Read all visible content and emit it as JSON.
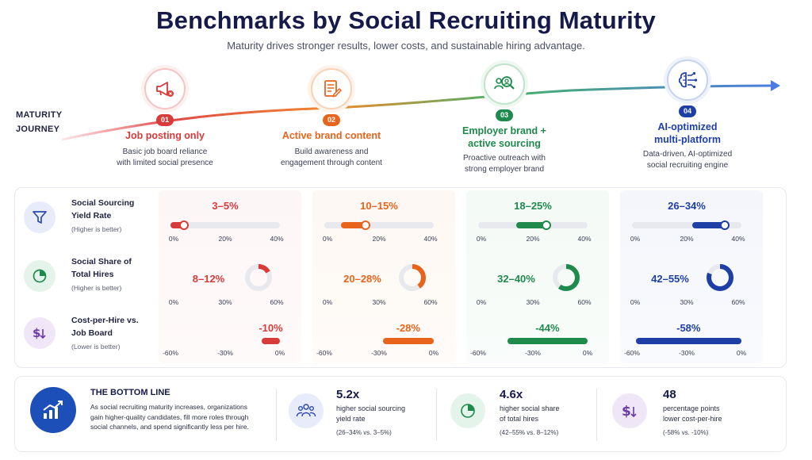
{
  "title": "Benchmarks by Social Recruiting Maturity",
  "subtitle": "Maturity drives stronger results, lower costs, and sustainable hiring advantage.",
  "journey": {
    "label_line1": "MATURITY",
    "label_line2": "JOURNEY"
  },
  "stages": [
    {
      "num": "01",
      "name_line1": "Job posting only",
      "name_line2": "",
      "desc_line1": "Basic job board reliance",
      "desc_line2": "with limited social presence",
      "icon": "megaphone-icon",
      "color": "#d93a3a"
    },
    {
      "num": "02",
      "name_line1": "Active brand content",
      "name_line2": "",
      "desc_line1": "Build awareness and",
      "desc_line2": "engagement through content",
      "icon": "document-edit-icon",
      "color": "#e8641c"
    },
    {
      "num": "03",
      "name_line1": "Employer brand +",
      "name_line2": "active sourcing",
      "desc_line1": "Proactive outreach with",
      "desc_line2": "strong employer brand",
      "icon": "people-search-icon",
      "color": "#1e8a4c"
    },
    {
      "num": "04",
      "name_line1": "AI-optimized",
      "name_line2": "multi-platform",
      "desc_line1": "Data-driven, AI-optimized",
      "desc_line2": "social recruiting engine",
      "icon": "ai-brain-icon",
      "color": "#1d3fa6"
    }
  ],
  "metrics": [
    {
      "name_line1": "Social Sourcing",
      "name_line2": "Yield Rate",
      "note": "(Higher is better)",
      "icon": "funnel-icon",
      "icon_color": "#2b49b0",
      "icon_bg": "#e7ebfa",
      "ticks": [
        "0%",
        "20%",
        "40%"
      ],
      "values": [
        "3–5%",
        "10–15%",
        "18–25%",
        "26–34%"
      ],
      "levels": [
        [
          3,
          5
        ],
        [
          10,
          15
        ],
        [
          18,
          25
        ],
        [
          26,
          34
        ]
      ],
      "scale": [
        0,
        40
      ]
    },
    {
      "name_line1": "Social Share of",
      "name_line2": "Total Hires",
      "note": "(Higher is better)",
      "icon": "pie-chart-icon",
      "icon_color": "#1e8a4c",
      "icon_bg": "#e4f4ea",
      "ticks": [
        "0%",
        "30%",
        "60%"
      ],
      "values": [
        "8–12%",
        "20–28%",
        "32–40%",
        "42–55%"
      ],
      "levels": [
        [
          8,
          12
        ],
        [
          20,
          28
        ],
        [
          32,
          40
        ],
        [
          42,
          55
        ]
      ],
      "scale": [
        0,
        60
      ]
    },
    {
      "name_line1": "Cost-per-Hire vs.",
      "name_line2": "Job Board",
      "note": "(Lower is better)",
      "icon": "dollar-down-icon",
      "icon_color": "#6a3aa8",
      "icon_bg": "#efe7f8",
      "ticks": [
        "-60%",
        "-30%",
        "0%"
      ],
      "values": [
        "-10%",
        "-28%",
        "-44%",
        "-58%"
      ],
      "levels": [
        -10,
        -28,
        -44,
        -58
      ],
      "scale": [
        -60,
        0
      ]
    }
  ],
  "stage_colors": [
    "#d93a3a",
    "#e8641c",
    "#1e8a4c",
    "#1d3fa6"
  ],
  "bottom": {
    "title": "THE BOTTOM LINE",
    "text": "As social recruiting maturity increases, organizations gain higher-quality candidates, fill more roles through social channels, and spend significantly less per hire.",
    "icon": "growth-chart-icon",
    "stats": [
      {
        "big": "5.2x",
        "desc_line1": "higher social sourcing",
        "desc_line2": "yield rate",
        "note": "(26–34% vs. 3–5%)",
        "icon": "people-group-icon",
        "icon_bg": "#e7ebfa",
        "icon_color": "#2b49b0"
      },
      {
        "big": "4.6x",
        "desc_line1": "higher social share",
        "desc_line2": "of total hires",
        "note": "(42–55% vs. 8–12%)",
        "icon": "pie-chart-icon",
        "icon_bg": "#e4f4ea",
        "icon_color": "#1e8a4c"
      },
      {
        "big": "48",
        "desc_line1": "percentage points",
        "desc_line2": "lower cost-per-hire",
        "note": "(-58% vs. -10%)",
        "icon": "dollar-down-icon",
        "icon_bg": "#efe7f8",
        "icon_color": "#6a3aa8"
      }
    ]
  }
}
